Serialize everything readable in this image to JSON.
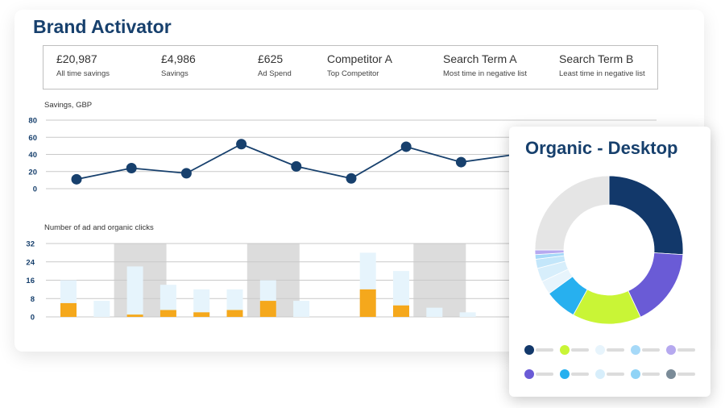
{
  "header": {
    "title": "Brand Activator"
  },
  "stats": [
    {
      "value": "£20,987",
      "label": "All time savings"
    },
    {
      "value": "£4,986",
      "label": "Savings"
    },
    {
      "value": "£625",
      "label": "Ad Spend"
    },
    {
      "value": "Competitor A",
      "label": "Top Competitor"
    },
    {
      "value": "Search Term A",
      "label": "Most time in negative list"
    },
    {
      "value": "Search Term B",
      "label": "Least time in negative list"
    }
  ],
  "chart_data": [
    {
      "type": "line",
      "title": "Savings, GBP",
      "ylim": [
        0,
        80
      ],
      "yticks": [
        "80",
        "60",
        "40",
        "20",
        "0"
      ],
      "x": [
        1,
        2,
        3,
        4,
        5,
        6,
        7,
        8,
        9
      ],
      "values": [
        11,
        24,
        18,
        52,
        26,
        12,
        49,
        31,
        40
      ],
      "grid": true,
      "colors": {
        "line": "#17406d"
      }
    },
    {
      "type": "bar",
      "title": "Number of ad and organic clicks",
      "ylim": [
        0,
        32
      ],
      "yticks": [
        "32",
        "24",
        "16",
        "8",
        "0"
      ],
      "categories": [
        "1",
        "2",
        "3",
        "4",
        "5",
        "6",
        "7",
        "8",
        "9",
        "10",
        "11",
        "12",
        "13"
      ],
      "series": [
        {
          "values": [
            16,
            7,
            22,
            14,
            12,
            12,
            16,
            7,
            0,
            28,
            20,
            4,
            2
          ],
          "color": "#e6f4fc"
        },
        {
          "values": [
            6,
            0,
            1,
            3,
            2,
            3,
            7,
            0,
            0,
            12,
            5,
            0,
            0
          ],
          "color": "#f5a81c"
        }
      ],
      "highlighted_categories": [
        3,
        7,
        12
      ],
      "highlight_color": "#dcdcdc",
      "grid": true
    },
    {
      "type": "pie",
      "title": "Organic - Desktop",
      "donut": true,
      "values": [
        26,
        17,
        15,
        7,
        3,
        3,
        2,
        1,
        1,
        25
      ],
      "colors": [
        "#12386a",
        "#6a5bd6",
        "#c9f536",
        "#27b0ef",
        "#e7f4fc",
        "#d7eefb",
        "#c3e6fa",
        "#a6d9f8",
        "#b6a9ef",
        "#e5e5e5"
      ],
      "legend_colors": [
        "#12386a",
        "#c9f536",
        "#e7f4fc",
        "#a6d9f8",
        "#b6a9ef",
        "#6a5bd6",
        "#27b0ef",
        "#d7eefb",
        "#8fd3f6",
        "#7a8b98"
      ]
    }
  ]
}
